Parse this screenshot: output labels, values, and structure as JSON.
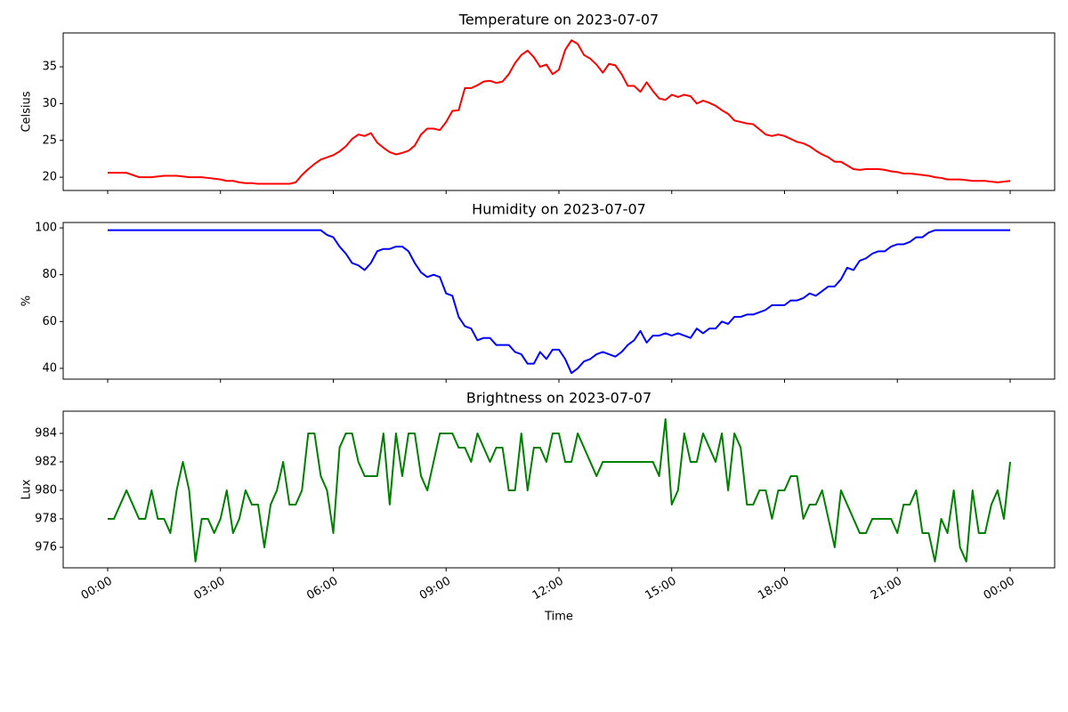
{
  "chart_data": [
    {
      "type": "line",
      "title": "Temperature on 2023-07-07",
      "y_label": "Celsius",
      "color": "#ff0000",
      "x": [
        0,
        10,
        20,
        30,
        40,
        50,
        60,
        70,
        80,
        90,
        100,
        110,
        120,
        130,
        140,
        150,
        160,
        170,
        180,
        190,
        200,
        210,
        220,
        230,
        240,
        250,
        260,
        270,
        280,
        290,
        300,
        310,
        320,
        330,
        340,
        350,
        360,
        370,
        380,
        390,
        400,
        410,
        420,
        430,
        440,
        450,
        460,
        470,
        480,
        490,
        500,
        510,
        520,
        530,
        540,
        550,
        560,
        570,
        580,
        590,
        600,
        610,
        620,
        630,
        640,
        650,
        660,
        670,
        680,
        690,
        700,
        710,
        720,
        730,
        740,
        750,
        760,
        770,
        780,
        790,
        800,
        810,
        820,
        830,
        840,
        850,
        860,
        870,
        880,
        890,
        900,
        910,
        920,
        930,
        940,
        950,
        960,
        970,
        980,
        990,
        1000,
        1010,
        1020,
        1030,
        1040,
        1050,
        1060,
        1070,
        1080,
        1090,
        1100,
        1110,
        1120,
        1130,
        1140,
        1150,
        1160,
        1170,
        1180,
        1190,
        1200,
        1210,
        1220,
        1230,
        1240,
        1250,
        1260,
        1270,
        1280,
        1290,
        1300,
        1310,
        1320,
        1330,
        1340,
        1350,
        1360,
        1370,
        1380,
        1390,
        1400,
        1410,
        1420,
        1430,
        1440
      ],
      "values": [
        20.6,
        20.6,
        20.6,
        20.6,
        20.3,
        20.0,
        20.0,
        20.0,
        20.1,
        20.2,
        20.2,
        20.2,
        20.1,
        20.0,
        20.0,
        20.0,
        19.9,
        19.8,
        19.7,
        19.5,
        19.5,
        19.3,
        19.2,
        19.2,
        19.1,
        19.1,
        19.1,
        19.1,
        19.1,
        19.1,
        19.3,
        20.3,
        21.1,
        21.8,
        22.4,
        22.7,
        23.0,
        23.5,
        24.2,
        25.2,
        25.8,
        25.6,
        26.0,
        24.7,
        24.0,
        23.4,
        23.1,
        23.3,
        23.6,
        24.3,
        25.8,
        26.6,
        26.6,
        26.4,
        27.5,
        29.0,
        29.1,
        32.1,
        32.1,
        32.5,
        33.0,
        33.1,
        32.8,
        33.0,
        34.0,
        35.5,
        36.6,
        37.2,
        36.3,
        35.0,
        35.3,
        34.0,
        34.6,
        37.3,
        38.6,
        38.1,
        36.6,
        36.1,
        35.3,
        34.2,
        35.4,
        35.2,
        34.0,
        32.4,
        32.4,
        31.6,
        32.9,
        31.7,
        30.7,
        30.5,
        31.2,
        30.9,
        31.2,
        31.0,
        30.0,
        30.4,
        30.1,
        29.7,
        29.1,
        28.6,
        27.7,
        27.5,
        27.3,
        27.2,
        26.5,
        25.8,
        25.6,
        25.8,
        25.6,
        25.2,
        24.8,
        24.6,
        24.2,
        23.6,
        23.1,
        22.7,
        22.1,
        22.1,
        21.6,
        21.1,
        21.0,
        21.1,
        21.1,
        21.1,
        21.0,
        20.8,
        20.7,
        20.5,
        20.5,
        20.4,
        20.3,
        20.2,
        20.0,
        19.9,
        19.7,
        19.7,
        19.7,
        19.6,
        19.5,
        19.5,
        19.5,
        19.4,
        19.3,
        19.4,
        19.5
      ],
      "xlim": [
        -71,
        1511
      ],
      "xticks": [
        0,
        180,
        360,
        540,
        720,
        900,
        1080,
        1260,
        1440
      ],
      "ylim": [
        18.2,
        39.6
      ],
      "yticks": [
        20,
        25,
        30,
        35
      ]
    },
    {
      "type": "line",
      "title": "Humidity on 2023-07-07",
      "y_label": "%",
      "color": "#0000ff",
      "x": [
        0,
        10,
        20,
        30,
        40,
        50,
        60,
        70,
        80,
        90,
        100,
        110,
        120,
        130,
        140,
        150,
        160,
        170,
        180,
        190,
        200,
        210,
        220,
        230,
        240,
        250,
        260,
        270,
        280,
        290,
        300,
        310,
        320,
        330,
        340,
        350,
        360,
        370,
        380,
        390,
        400,
        410,
        420,
        430,
        440,
        450,
        460,
        470,
        480,
        490,
        500,
        510,
        520,
        530,
        540,
        550,
        560,
        570,
        580,
        590,
        600,
        610,
        620,
        630,
        640,
        650,
        660,
        670,
        680,
        690,
        700,
        710,
        720,
        730,
        740,
        750,
        760,
        770,
        780,
        790,
        800,
        810,
        820,
        830,
        840,
        850,
        860,
        870,
        880,
        890,
        900,
        910,
        920,
        930,
        940,
        950,
        960,
        970,
        980,
        990,
        1000,
        1010,
        1020,
        1030,
        1040,
        1050,
        1060,
        1070,
        1080,
        1090,
        1100,
        1110,
        1120,
        1130,
        1140,
        1150,
        1160,
        1170,
        1180,
        1190,
        1200,
        1210,
        1220,
        1230,
        1240,
        1250,
        1260,
        1270,
        1280,
        1290,
        1300,
        1310,
        1320,
        1330,
        1340,
        1350,
        1360,
        1370,
        1380,
        1390,
        1400,
        1410,
        1420,
        1430,
        1440
      ],
      "values": [
        99,
        99,
        99,
        99,
        99,
        99,
        99,
        99,
        99,
        99,
        99,
        99,
        99,
        99,
        99,
        99,
        99,
        99,
        99,
        99,
        99,
        99,
        99,
        99,
        99,
        99,
        99,
        99,
        99,
        99,
        99,
        99,
        99,
        99,
        99,
        97,
        96,
        92,
        89,
        85,
        84,
        82,
        85,
        90,
        91,
        91,
        92,
        92,
        90,
        85,
        81,
        79,
        80,
        79,
        72,
        71,
        62,
        58,
        57,
        52,
        53,
        53,
        50,
        50,
        50,
        47,
        46,
        42,
        42,
        47,
        44,
        48,
        48,
        44,
        38,
        40,
        43,
        44,
        46,
        47,
        46,
        45,
        47,
        50,
        52,
        56,
        51,
        54,
        54,
        55,
        54,
        55,
        54,
        53,
        57,
        55,
        57,
        57,
        60,
        59,
        62,
        62,
        63,
        63,
        64,
        65,
        67,
        67,
        67,
        69,
        69,
        70,
        72,
        71,
        73,
        75,
        75,
        78,
        83,
        82,
        86,
        87,
        89,
        90,
        90,
        92,
        93,
        93,
        94,
        96,
        96,
        98,
        99,
        99,
        99,
        99,
        99,
        99,
        99,
        99,
        99,
        99,
        99,
        99,
        99
      ],
      "xlim": [
        -71,
        1511
      ],
      "xticks": [
        0,
        180,
        360,
        540,
        720,
        900,
        1080,
        1260,
        1440
      ],
      "ylim": [
        35.4,
        102.3
      ],
      "yticks": [
        40,
        60,
        80,
        100
      ]
    },
    {
      "type": "line",
      "title": "Brightness on 2023-07-07",
      "y_label": "Lux",
      "x_label": "Time",
      "color": "#008000",
      "x": [
        0,
        10,
        20,
        30,
        40,
        50,
        60,
        70,
        80,
        90,
        100,
        110,
        120,
        130,
        140,
        150,
        160,
        170,
        180,
        190,
        200,
        210,
        220,
        230,
        240,
        250,
        260,
        270,
        280,
        290,
        300,
        310,
        320,
        330,
        340,
        350,
        360,
        370,
        380,
        390,
        400,
        410,
        420,
        430,
        440,
        450,
        460,
        470,
        480,
        490,
        500,
        510,
        520,
        530,
        540,
        550,
        560,
        570,
        580,
        590,
        600,
        610,
        620,
        630,
        640,
        650,
        660,
        670,
        680,
        690,
        700,
        710,
        720,
        730,
        740,
        750,
        760,
        770,
        780,
        790,
        800,
        810,
        820,
        830,
        840,
        850,
        860,
        870,
        880,
        890,
        900,
        910,
        920,
        930,
        940,
        950,
        960,
        970,
        980,
        990,
        1000,
        1010,
        1020,
        1030,
        1040,
        1050,
        1060,
        1070,
        1080,
        1090,
        1100,
        1110,
        1120,
        1130,
        1140,
        1150,
        1160,
        1170,
        1180,
        1190,
        1200,
        1210,
        1220,
        1230,
        1240,
        1250,
        1260,
        1270,
        1280,
        1290,
        1300,
        1310,
        1320,
        1330,
        1340,
        1350,
        1360,
        1370,
        1380,
        1390,
        1400,
        1410,
        1420,
        1430,
        1440
      ],
      "values": [
        978,
        978,
        979,
        980,
        979,
        978,
        978,
        980,
        978,
        978,
        977,
        980,
        982,
        980,
        975,
        978,
        978,
        977,
        978,
        980,
        977,
        978,
        980,
        979,
        979,
        976,
        979,
        980,
        982,
        979,
        979,
        980,
        984,
        984,
        981,
        980,
        977,
        983,
        984,
        984,
        982,
        981,
        981,
        981,
        984,
        979,
        984,
        981,
        984,
        984,
        981,
        980,
        982,
        984,
        984,
        984,
        983,
        983,
        982,
        984,
        983,
        982,
        983,
        983,
        980,
        980,
        984,
        980,
        983,
        983,
        982,
        984,
        984,
        982,
        982,
        984,
        983,
        982,
        981,
        982,
        982,
        982,
        982,
        982,
        982,
        982,
        982,
        982,
        981,
        985,
        979,
        980,
        984,
        982,
        982,
        984,
        983,
        982,
        984,
        980,
        984,
        983,
        979,
        979,
        980,
        980,
        978,
        980,
        980,
        981,
        981,
        978,
        979,
        979,
        980,
        978,
        976,
        980,
        979,
        978,
        977,
        977,
        978,
        978,
        978,
        978,
        977,
        979,
        979,
        980,
        977,
        977,
        975,
        978,
        977,
        980,
        976,
        975,
        980,
        977,
        977,
        979,
        980,
        978,
        982
      ],
      "xlim": [
        -71,
        1511
      ],
      "xticks": [
        {
          "value": 0,
          "label": "00:00"
        },
        {
          "value": 180,
          "label": "03:00"
        },
        {
          "value": 360,
          "label": "06:00"
        },
        {
          "value": 540,
          "label": "09:00"
        },
        {
          "value": 720,
          "label": "12:00"
        },
        {
          "value": 900,
          "label": "15:00"
        },
        {
          "value": 1080,
          "label": "18:00"
        },
        {
          "value": 1260,
          "label": "21:00"
        },
        {
          "value": 1440,
          "label": "00:00"
        }
      ],
      "ylim": [
        974.56,
        985.56
      ],
      "yticks": [
        976,
        978,
        980,
        982,
        984
      ]
    }
  ]
}
